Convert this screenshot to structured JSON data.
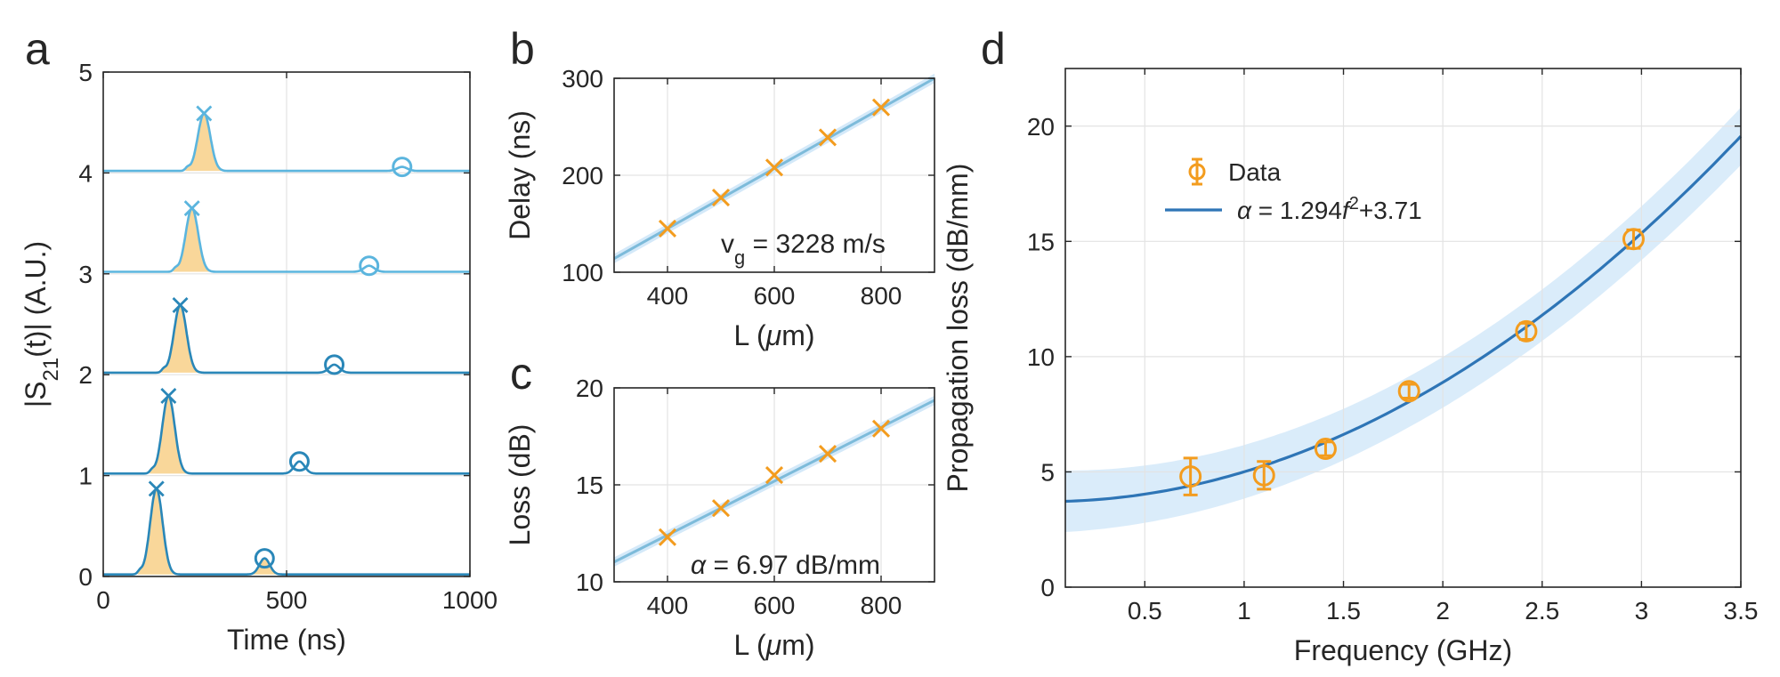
{
  "colors": {
    "orange": "#F39C1E",
    "fill": "#F9D79A",
    "trace_light": "#5BB5DE",
    "trace_dark": "#2A87B8",
    "fit_blue": "#2E75B6",
    "band": "#D4E9F9",
    "linefit": "#7DBBDA",
    "grid": "#E3E3E3"
  },
  "chart_data": [
    {
      "id": "a",
      "panel_label": "a",
      "type": "line",
      "xlabel": "Time (ns)",
      "ylabel": "|S21(t)| (A.U.)",
      "ylabel_parts": {
        "pre": "|S",
        "sub": "21",
        "post": "(t)| (A.U.)"
      },
      "xlim": [
        0,
        1000
      ],
      "ylim": [
        0,
        5
      ],
      "xticks": [
        0,
        500,
        1000
      ],
      "yticks": [
        0,
        1,
        2,
        3,
        4,
        5
      ],
      "grid": true,
      "series": [
        {
          "offset": 0,
          "peak_x": 145,
          "peak_y": 0.85,
          "echo_x": 440,
          "echo_y": 0.18
        },
        {
          "offset": 1,
          "peak_x": 178,
          "peak_y": 0.77,
          "echo_x": 535,
          "echo_y": 0.14
        },
        {
          "offset": 2,
          "peak_x": 210,
          "peak_y": 0.67,
          "echo_x": 630,
          "echo_y": 0.1
        },
        {
          "offset": 3,
          "peak_x": 242,
          "peak_y": 0.63,
          "echo_x": 725,
          "echo_y": 0.08
        },
        {
          "offset": 4,
          "peak_x": 275,
          "peak_y": 0.57,
          "echo_x": 815,
          "echo_y": 0.06
        }
      ]
    },
    {
      "id": "b",
      "panel_label": "b",
      "type": "scatter",
      "xlabel": "L (μm)",
      "ylabel": "Delay (ns)",
      "xlim": [
        300,
        900
      ],
      "ylim": [
        100,
        300
      ],
      "xticks": [
        400,
        600,
        800
      ],
      "yticks": [
        100,
        200,
        300
      ],
      "grid": true,
      "x": [
        400,
        500,
        600,
        700,
        800
      ],
      "y": [
        145,
        177,
        208,
        239,
        270
      ],
      "fit": {
        "slope": 0.31,
        "intercept": 21
      },
      "annotation": {
        "pre": "v",
        "sub": "g",
        "post": " = 3228 m/s"
      }
    },
    {
      "id": "c",
      "panel_label": "c",
      "type": "scatter",
      "xlabel": "L (μm)",
      "ylabel": "Loss (dB)",
      "xlim": [
        300,
        900
      ],
      "ylim": [
        10,
        20
      ],
      "xticks": [
        400,
        600,
        800
      ],
      "yticks": [
        10,
        15,
        20
      ],
      "grid": true,
      "x": [
        400,
        500,
        600,
        700,
        800
      ],
      "y": [
        12.3,
        13.8,
        15.5,
        16.6,
        17.9
      ],
      "fit": {
        "slope": 0.0139,
        "intercept": 6.85
      },
      "annotation": {
        "pre": "α",
        "post": " = 6.97 dB/mm"
      }
    },
    {
      "id": "d",
      "panel_label": "d",
      "type": "scatter",
      "xlabel": "Frequency (GHz)",
      "ylabel": "Propagation loss (dB/mm)",
      "xlim": [
        0.1,
        3.5
      ],
      "ylim": [
        0,
        22.5
      ],
      "xticks": [
        0.5,
        1,
        1.5,
        2,
        2.5,
        3,
        3.5
      ],
      "yticks": [
        0,
        5,
        10,
        15,
        20
      ],
      "grid": true,
      "x": [
        0.73,
        1.1,
        1.41,
        1.83,
        2.42,
        2.96
      ],
      "y": [
        4.8,
        4.85,
        6.0,
        8.5,
        11.1,
        15.1
      ],
      "err": [
        0.8,
        0.6,
        0.3,
        0.3,
        0.35,
        0.4
      ],
      "fit": {
        "a": 1.294,
        "b": 3.71
      },
      "band": {
        "low_scale": 0.95,
        "low_off": 0.9,
        "high_scale": 1.05,
        "high_off": 0.9
      },
      "legend": [
        {
          "label": "Data"
        },
        {
          "label_pre": "α = 1.294",
          "label_var": "f",
          "label_exp": "2",
          "label_post": "+3.71"
        }
      ]
    }
  ]
}
